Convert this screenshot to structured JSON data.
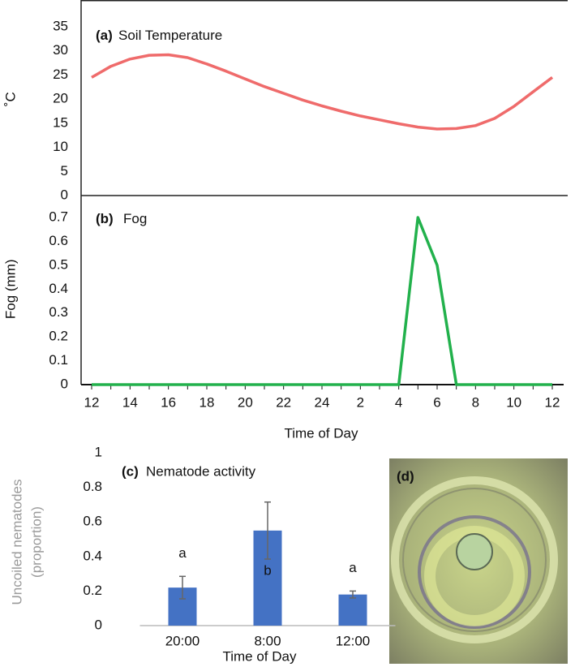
{
  "chart_data": [
    {
      "type": "line",
      "label": "(a)",
      "title": "Soil Temperature",
      "ylabel": "˚C",
      "ylim": [
        0,
        40
      ],
      "yticks": [
        0,
        5,
        10,
        15,
        20,
        25,
        30,
        35
      ],
      "series": [
        {
          "name": "Soil Temperature",
          "color": "#ef6b6b",
          "values": [
            24.5,
            26.8,
            28.3,
            29.1,
            29.2,
            28.6,
            27.3,
            25.8,
            24.2,
            22.6,
            21.2,
            19.8,
            18.6,
            17.5,
            16.5,
            15.7,
            14.9,
            14.2,
            13.8,
            13.9,
            14.5,
            16.0,
            18.5,
            21.5,
            24.5
          ]
        }
      ]
    },
    {
      "type": "line",
      "label": "(b)",
      "title": "Fog",
      "ylabel": "Fog (mm)",
      "xlabel": "Time of Day",
      "categories": [
        "12",
        null,
        "14",
        null,
        "16",
        null,
        "18",
        null,
        "20",
        null,
        "22",
        null,
        "24",
        null,
        "2",
        null,
        "4",
        null,
        "6",
        null,
        "8",
        null,
        "10",
        null,
        "12"
      ],
      "ylim": [
        0,
        0.8
      ],
      "yticks": [
        0,
        0.1,
        0.2,
        0.3,
        0.4,
        0.5,
        0.6,
        0.7
      ],
      "series": [
        {
          "name": "Fog",
          "color": "#22b14c",
          "values": [
            0,
            0,
            0,
            0,
            0,
            0,
            0,
            0,
            0,
            0,
            0,
            0,
            0,
            0,
            0,
            0,
            0,
            0.7,
            0.5,
            0,
            0,
            0,
            0,
            0,
            0
          ]
        }
      ]
    },
    {
      "type": "bar",
      "label": "(c)",
      "title": "Nematode activity",
      "ylabel": [
        "Uncoiled nematodes",
        "(proportion)"
      ],
      "xlabel": "Time of Day",
      "categories": [
        "20:00",
        "8:00",
        "12:00"
      ],
      "values": [
        0.22,
        0.55,
        0.18
      ],
      "errors": [
        0.065,
        0.165,
        0.02
      ],
      "letters": [
        "a",
        "b",
        "a"
      ],
      "color": "#4472c4",
      "ylim": [
        0,
        1
      ],
      "yticks": [
        0,
        0.2,
        0.4,
        0.6,
        0.8,
        1
      ]
    }
  ],
  "image_panel": {
    "label": "(d)"
  }
}
